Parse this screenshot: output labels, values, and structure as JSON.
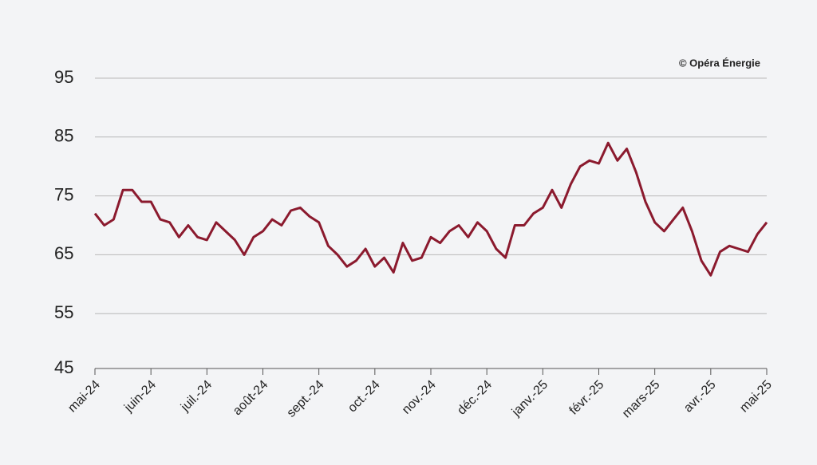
{
  "chart_data": {
    "type": "line",
    "annotation": "© Opéra Énergie",
    "categories": [
      "mai-24",
      null,
      null,
      null,
      null,
      null,
      "juin-24",
      null,
      null,
      null,
      null,
      null,
      "juil.-24",
      null,
      null,
      null,
      null,
      null,
      "août-24",
      null,
      null,
      null,
      null,
      null,
      "sept.-24",
      null,
      null,
      null,
      null,
      null,
      "oct.-24",
      null,
      null,
      null,
      null,
      null,
      "nov.-24",
      null,
      null,
      null,
      null,
      null,
      "déc.-24",
      null,
      null,
      null,
      null,
      null,
      "janv.-25",
      null,
      null,
      null,
      null,
      null,
      "févr.-25",
      null,
      null,
      null,
      null,
      null,
      "mars-25",
      null,
      null,
      null,
      null,
      null,
      "avr.-25",
      null,
      null,
      null,
      null,
      null,
      "mai-25"
    ],
    "series": [
      {
        "name": null,
        "color": "#8b1a2e",
        "values": [
          72,
          70,
          71,
          76,
          76,
          74,
          74,
          71,
          70.5,
          68,
          70,
          68,
          67.5,
          70.5,
          69,
          67.5,
          65,
          68,
          69,
          71,
          70,
          72.5,
          73,
          71.5,
          70.5,
          66.5,
          65,
          63,
          64,
          66,
          63,
          64.5,
          62,
          67,
          64,
          64.5,
          68,
          67,
          69,
          70,
          68,
          70.5,
          69,
          66,
          64.5,
          70,
          70,
          72,
          73,
          76,
          73,
          77,
          80,
          81,
          80.5,
          84,
          81,
          83,
          79,
          74,
          70.5,
          69,
          71,
          73,
          69,
          64,
          61.5,
          65.5,
          66.5,
          66,
          65.5,
          68.5,
          70.5
        ]
      }
    ],
    "ylim": [
      45,
      95
    ],
    "yticks": [
      45,
      55,
      65,
      75,
      85,
      95
    ],
    "grid": true
  }
}
